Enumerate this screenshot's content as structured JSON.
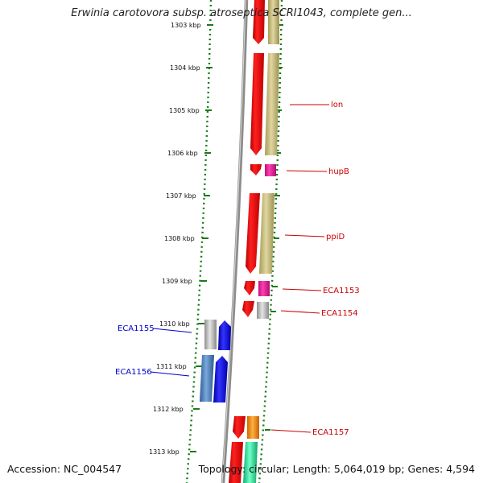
{
  "header": {
    "title": "Erwinia carotovora subsp. atroseptica SCRI1043, complete gen..."
  },
  "footer": {
    "accession": "Accession: NC_004547",
    "summary": "Topology: circular; Length: 5,064,019 bp; Genes: 4,594"
  },
  "ticks": [
    "1303 kbp",
    "1304 kbp",
    "1305 kbp",
    "1306 kbp",
    "1307 kbp",
    "1308 kbp",
    "1309 kbp",
    "1310 kbp",
    "1311 kbp",
    "1312 kbp",
    "1313 kbp"
  ],
  "genes": [
    {
      "label": "lon",
      "strand": "forward",
      "color": "#cc0000"
    },
    {
      "label": "hupB",
      "strand": "forward",
      "color": "#cc0000"
    },
    {
      "label": "ppiD",
      "strand": "forward",
      "color": "#cc0000"
    },
    {
      "label": "ECA1153",
      "strand": "forward",
      "color": "#cc0000"
    },
    {
      "label": "ECA1154",
      "strand": "forward",
      "color": "#cc0000"
    },
    {
      "label": "ECA1155",
      "strand": "reverse",
      "color": "#0000cc"
    },
    {
      "label": "ECA1156",
      "strand": "reverse",
      "color": "#0000cc"
    },
    {
      "label": "ECA1157",
      "strand": "forward",
      "color": "#cc0000"
    }
  ],
  "colors": {
    "backbone": "#8c8c8c",
    "tick": "#1a7a1a",
    "cds_forward": "#ee1111",
    "cds_reverse": "#1111ee",
    "cog_khaki": "#c8bd80",
    "cog_magenta": "#e8239c",
    "cog_grey": "#b8b8b8",
    "cog_steelblue": "#4f86c0",
    "cog_orange": "#ff8c00",
    "cog_green": "#2fe0a0"
  }
}
